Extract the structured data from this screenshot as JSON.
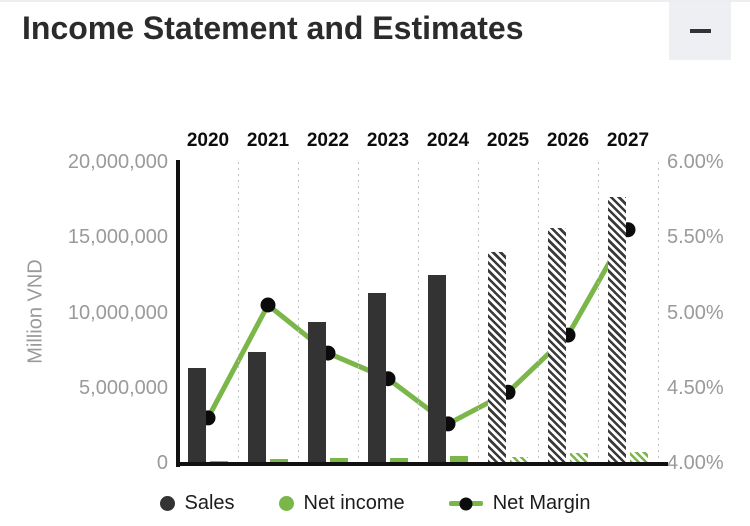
{
  "header": {
    "title": "Income Statement and Estimates"
  },
  "chart_data": {
    "type": "combo-bar-line",
    "categories": [
      "2020",
      "2021",
      "2022",
      "2023",
      "2024",
      "2025",
      "2026",
      "2027"
    ],
    "estimates": [
      "2025",
      "2026",
      "2027"
    ],
    "series": [
      {
        "name": "Sales",
        "type": "bar",
        "axis": "left",
        "color": "#333333",
        "values": [
          6300000,
          7400000,
          9400000,
          11300000,
          12500000,
          14050000,
          15600000,
          17650000
        ]
      },
      {
        "name": "Net income",
        "type": "bar",
        "axis": "left",
        "color": "#7ab648",
        "values": [
          100000,
          250000,
          330000,
          310000,
          440000,
          420000,
          640000,
          700000
        ]
      },
      {
        "name": "Net Margin",
        "type": "line",
        "axis": "right",
        "color": "#7ab648",
        "marker_color": "#0b0b0b",
        "values": [
          4.3,
          5.05,
          4.73,
          4.56,
          4.26,
          4.47,
          4.85,
          5.55
        ]
      }
    ],
    "left_axis": {
      "label": "Million VND",
      "min": 0,
      "max": 20000000,
      "ticks": [
        {
          "label": "20,000,000",
          "value": 20000000
        },
        {
          "label": "15,000,000",
          "value": 15000000
        },
        {
          "label": "10,000,000",
          "value": 10000000
        },
        {
          "label": "5,000,000",
          "value": 5000000
        },
        {
          "label": "0",
          "value": 0
        }
      ]
    },
    "right_axis": {
      "min": 4.0,
      "max": 6.0,
      "ticks": [
        {
          "label": "6.00%",
          "value": 6.0
        },
        {
          "label": "5.50%",
          "value": 5.5
        },
        {
          "label": "5.00%",
          "value": 5.0
        },
        {
          "label": "4.50%",
          "value": 4.5
        },
        {
          "label": "4.00%",
          "value": 4.0
        }
      ]
    },
    "grid": "vertical-dotted",
    "legend_position": "bottom"
  }
}
